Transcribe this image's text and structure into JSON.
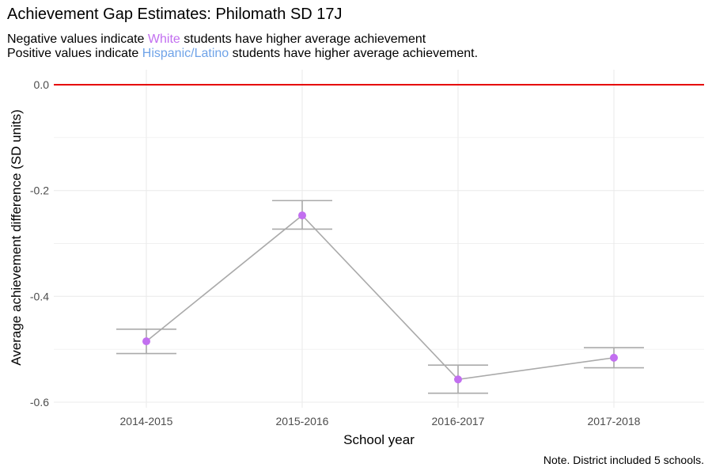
{
  "title": "Achievement Gap Estimates: Philomath SD 17J",
  "subtitle": {
    "line1": {
      "before": "Negative values indicate ",
      "highlight": "White",
      "after": " students have higher average achievement"
    },
    "line2": {
      "before": "Positive values indicate ",
      "highlight": "Hispanic/Latino",
      "after": " students have higher average achievement."
    }
  },
  "caption": "Note. District included 5 schools.",
  "colors": {
    "white_group": "#c26ff0",
    "hispanic_group": "#6fa3e8",
    "reference_line": "#e60000",
    "series_line": "#aaaaaa",
    "point": "#c26ff0",
    "grid": "#ebebeb",
    "tick_text": "#4d4d4d"
  },
  "chart_data": {
    "type": "line",
    "xlabel": "School year",
    "ylabel": "Average achievement difference (SD units)",
    "categories": [
      "2014-2015",
      "2015-2016",
      "2016-2017",
      "2017-2018"
    ],
    "values": [
      -0.485,
      -0.247,
      -0.557,
      -0.516
    ],
    "error_low": [
      -0.508,
      -0.273,
      -0.583,
      -0.535
    ],
    "error_high": [
      -0.462,
      -0.219,
      -0.53,
      -0.497
    ],
    "ylim": [
      -0.62,
      0.02
    ],
    "y_ticks": [
      0.0,
      -0.2,
      -0.4,
      -0.6
    ],
    "y_tick_labels": [
      "0.0",
      "-0.2",
      "-0.4",
      "-0.6"
    ],
    "reference_line": 0,
    "grid": true
  }
}
